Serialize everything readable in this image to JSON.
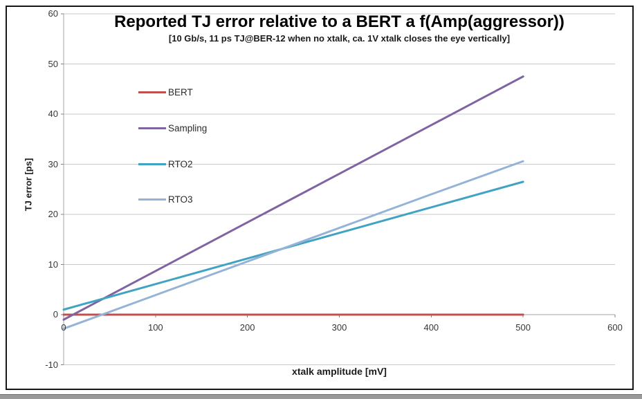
{
  "chart_data": {
    "type": "line",
    "title": "Reported TJ error relative to a BERT a f(Amp(aggressor))",
    "subtitle": "[10 Gb/s, 11 ps TJ@BER-12 when no xtalk, ca. 1V xtalk closes the eye vertically]",
    "xlabel": "xtalk amplitude [mV]",
    "ylabel": "TJ error [ps]",
    "xlim": [
      0,
      600
    ],
    "ylim": [
      -10,
      60
    ],
    "x_ticks": [
      0,
      100,
      200,
      300,
      400,
      500,
      600
    ],
    "y_ticks": [
      -10,
      0,
      10,
      20,
      30,
      40,
      50,
      60
    ],
    "grid": "horizontal-only",
    "legend_position": "inside-upper-left",
    "x": [
      0,
      100,
      200,
      300,
      400,
      500
    ],
    "series": [
      {
        "name": "BERT",
        "color": "#C0504D",
        "values": [
          0,
          0,
          0,
          0,
          0,
          0
        ]
      },
      {
        "name": "Sampling",
        "color": "#8064A2",
        "values": [
          -1.0,
          8.7,
          18.4,
          28.1,
          37.8,
          47.5
        ]
      },
      {
        "name": "RTO2",
        "color": "#41A3C4",
        "values": [
          1.0,
          6.1,
          11.2,
          16.3,
          21.4,
          26.5
        ]
      },
      {
        "name": "RTO3",
        "color": "#95B3D7",
        "values": [
          -2.8,
          3.9,
          10.6,
          17.3,
          24.0,
          30.6
        ]
      }
    ],
    "gridline_color": "#C9C9C9",
    "axis_color": "#A6A6A6",
    "tick_color": "#808080",
    "tick_label_color": "#363636"
  }
}
